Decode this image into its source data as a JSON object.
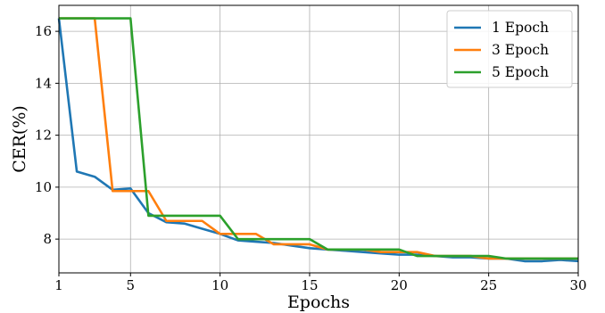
{
  "chart_data": {
    "type": "line",
    "title": "",
    "xlabel": "Epochs",
    "ylabel": "CER(%)",
    "xlim": [
      1,
      30
    ],
    "ylim": [
      6.7,
      17
    ],
    "xticks": [
      1,
      5,
      10,
      15,
      20,
      25,
      30
    ],
    "yticks": [
      8,
      10,
      12,
      14,
      16
    ],
    "grid": true,
    "legend_position": "top-right",
    "series": [
      {
        "name": "1 Epoch",
        "color": "#1f77b4",
        "x": [
          1,
          2,
          3,
          4,
          5,
          6,
          7,
          8,
          9,
          10,
          11,
          12,
          13,
          14,
          15,
          16,
          17,
          18,
          19,
          20,
          21,
          22,
          23,
          24,
          25,
          26,
          27,
          28,
          29,
          30
        ],
        "y": [
          16.5,
          10.6,
          10.4,
          9.9,
          9.95,
          9.0,
          8.65,
          8.6,
          8.4,
          8.2,
          7.95,
          7.9,
          7.85,
          7.75,
          7.65,
          7.6,
          7.55,
          7.5,
          7.45,
          7.4,
          7.4,
          7.35,
          7.3,
          7.3,
          7.25,
          7.25,
          7.15,
          7.15,
          7.2,
          7.15
        ]
      },
      {
        "name": "3 Epoch",
        "color": "#ff7f0e",
        "x": [
          1,
          2,
          3,
          4,
          5,
          6,
          7,
          8,
          9,
          10,
          11,
          12,
          13,
          14,
          15,
          16,
          17,
          18,
          19,
          20,
          21,
          22,
          23,
          24,
          25,
          26,
          27,
          28,
          29,
          30
        ],
        "y": [
          16.5,
          16.5,
          16.5,
          9.85,
          9.85,
          9.85,
          8.7,
          8.7,
          8.7,
          8.2,
          8.2,
          8.2,
          7.8,
          7.8,
          7.8,
          7.6,
          7.6,
          7.6,
          7.5,
          7.5,
          7.5,
          7.35,
          7.35,
          7.35,
          7.25,
          7.25,
          7.25,
          7.25,
          7.25,
          7.25
        ]
      },
      {
        "name": "5 Epoch",
        "color": "#2ca02c",
        "x": [
          1,
          2,
          3,
          4,
          5,
          6,
          7,
          8,
          9,
          10,
          11,
          12,
          13,
          14,
          15,
          16,
          17,
          18,
          19,
          20,
          21,
          22,
          23,
          24,
          25,
          26,
          27,
          28,
          29,
          30
        ],
        "y": [
          16.5,
          16.5,
          16.5,
          16.5,
          16.5,
          8.9,
          8.9,
          8.9,
          8.9,
          8.9,
          8.0,
          8.0,
          8.0,
          8.0,
          8.0,
          7.6,
          7.6,
          7.6,
          7.6,
          7.6,
          7.35,
          7.35,
          7.35,
          7.35,
          7.35,
          7.25,
          7.25,
          7.25,
          7.25,
          7.25
        ]
      }
    ]
  }
}
